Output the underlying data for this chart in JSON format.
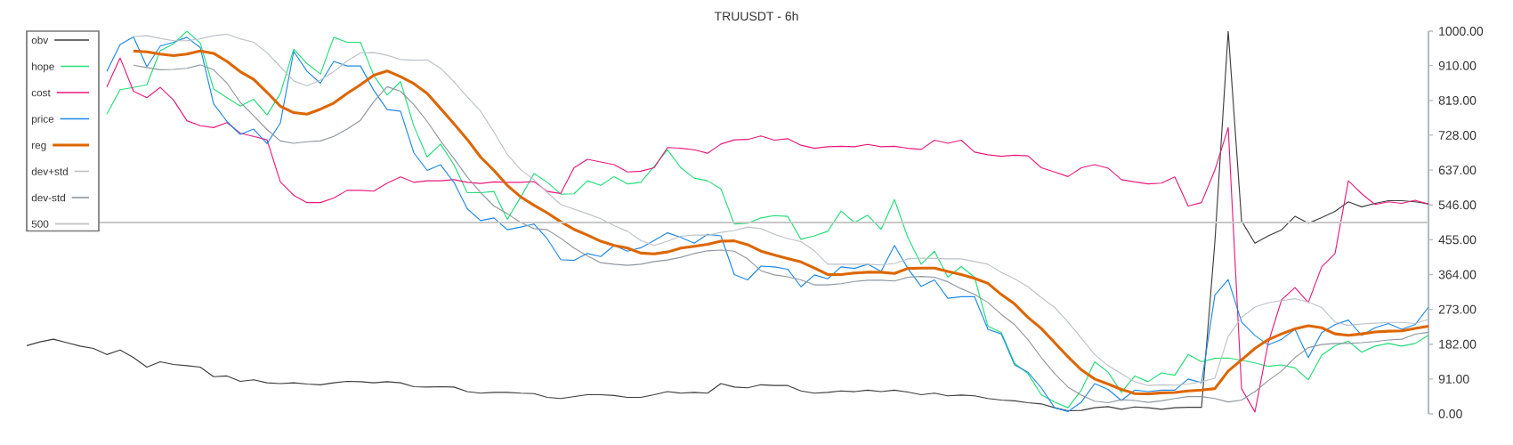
{
  "chart_data": {
    "type": "line",
    "title": "TRUUSDT - 6h",
    "categories": [
      null,
      null,
      null,
      null,
      null,
      null,
      null,
      null,
      null,
      null,
      null,
      null,
      null,
      null,
      null,
      null,
      null,
      null,
      null,
      null,
      null,
      null,
      null,
      null,
      null,
      null,
      null,
      null,
      null,
      null,
      null,
      null,
      null,
      null,
      null,
      null,
      null,
      null,
      null,
      null,
      null,
      null,
      null,
      null,
      null,
      null,
      null,
      null,
      null,
      null,
      null,
      null,
      null,
      null,
      null,
      null,
      null,
      null,
      null,
      null,
      null,
      null,
      null,
      null,
      null,
      null,
      null,
      null,
      null,
      null,
      null,
      null,
      null,
      null,
      null,
      null,
      null,
      null,
      null,
      null,
      null,
      null,
      null,
      null,
      null,
      null,
      null,
      null,
      null,
      null,
      null,
      null,
      null,
      null,
      null,
      null,
      null,
      null,
      null,
      null,
      null,
      null,
      null,
      null,
      null,
      null
    ],
    "series": [
      {
        "name": "obv",
        "color": "#3c3c3c",
        "values": [
          178,
          188,
          195,
          186,
          177,
          171,
          155,
          167,
          147,
          122,
          136,
          129,
          126,
          122,
          97,
          99,
          85,
          89,
          81,
          79,
          81,
          78,
          76,
          81,
          85,
          84,
          81,
          84,
          81,
          71,
          70,
          71,
          70,
          58,
          54,
          56,
          56,
          54,
          53,
          43,
          40,
          45,
          50,
          50,
          48,
          43,
          43,
          50,
          58,
          54,
          56,
          54,
          79,
          70,
          68,
          76,
          74,
          74,
          60,
          54,
          56,
          60,
          58,
          62,
          58,
          62,
          57,
          50,
          54,
          47,
          49,
          47,
          40,
          36,
          34,
          29,
          26,
          16,
          8,
          9,
          16,
          19,
          12,
          18,
          16,
          12,
          16,
          17,
          17,
          449,
          1000,
          504,
          446,
          465,
          481,
          516,
          498,
          513,
          529,
          554,
          541,
          550,
          557,
          557,
          554,
          549
        ]
      },
      {
        "name": "hope",
        "color": "#22dd77",
        "values": [
          null,
          null,
          null,
          null,
          null,
          null,
          783,
          847,
          853,
          860,
          949,
          967,
          1000,
          969,
          849,
          826,
          804,
          822,
          781,
          837,
          953,
          915,
          888,
          984,
          971,
          971,
          884,
          833,
          868,
          752,
          671,
          705,
          651,
          578,
          578,
          581,
          508,
          566,
          628,
          605,
          574,
          575,
          609,
          597,
          620,
          601,
          605,
          647,
          690,
          643,
          616,
          609,
          588,
          496,
          498,
          512,
          518,
          516,
          456,
          465,
          477,
          530,
          500,
          519,
          482,
          560,
          461,
          391,
          425,
          357,
          385,
          357,
          229,
          213,
          132,
          105,
          50,
          31,
          16,
          62,
          136,
          109,
          56,
          99,
          84,
          107,
          101,
          155,
          136,
          145,
          146,
          140,
          133,
          124,
          128,
          120,
          89,
          153,
          178,
          190,
          161,
          177,
          184,
          177,
          184,
          205
        ]
      },
      {
        "name": "cost",
        "color": "#e8197c",
        "values": [
          null,
          null,
          null,
          null,
          null,
          null,
          854,
          930,
          843,
          826,
          853,
          820,
          766,
          753,
          748,
          761,
          733,
          725,
          716,
          606,
          571,
          552,
          552,
          564,
          584,
          584,
          582,
          603,
          619,
          605,
          609,
          609,
          612,
          605,
          602,
          606,
          605,
          605,
          607,
          581,
          576,
          643,
          665,
          658,
          651,
          632,
          634,
          643,
          696,
          694,
          690,
          681,
          705,
          716,
          717,
          726,
          715,
          719,
          702,
          694,
          698,
          699,
          698,
          704,
          698,
          699,
          694,
          691,
          715,
          707,
          715,
          684,
          677,
          673,
          676,
          674,
          643,
          632,
          620,
          643,
          651,
          642,
          612,
          606,
          601,
          603,
          619,
          543,
          552,
          637,
          748,
          66,
          5,
          186,
          298,
          330,
          291,
          384,
          419,
          609,
          575,
          547,
          554,
          550,
          558,
          548
        ]
      },
      {
        "name": "price",
        "color": "#1e88e5",
        "values": [
          null,
          null,
          null,
          null,
          null,
          null,
          895,
          965,
          985,
          907,
          961,
          971,
          984,
          957,
          810,
          764,
          730,
          744,
          706,
          760,
          947,
          895,
          864,
          921,
          909,
          909,
          845,
          795,
          791,
          682,
          636,
          651,
          605,
          536,
          505,
          512,
          481,
          488,
          496,
          457,
          403,
          401,
          419,
          411,
          440,
          425,
          434,
          453,
          473,
          461,
          446,
          469,
          465,
          364,
          350,
          386,
          384,
          378,
          332,
          363,
          353,
          384,
          380,
          391,
          372,
          440,
          380,
          333,
          350,
          302,
          306,
          306,
          221,
          209,
          128,
          109,
          68,
          16,
          6,
          31,
          79,
          64,
          35,
          62,
          58,
          62,
          62,
          91,
          81,
          310,
          351,
          240,
          205,
          180,
          195,
          221,
          147,
          212,
          233,
          245,
          205,
          225,
          236,
          221,
          233,
          279
        ]
      },
      {
        "name": "reg",
        "color": "#dd6600",
        "values": [
          null,
          null,
          null,
          null,
          null,
          null,
          null,
          null,
          948,
          946,
          940,
          936,
          940,
          948,
          942,
          921,
          894,
          874,
          840,
          804,
          787,
          783,
          796,
          812,
          837,
          860,
          885,
          896,
          881,
          863,
          837,
          798,
          758,
          717,
          671,
          636,
          597,
          567,
          545,
          525,
          502,
          482,
          467,
          451,
          440,
          433,
          420,
          418,
          423,
          433,
          438,
          443,
          451,
          452,
          442,
          425,
          415,
          406,
          397,
          381,
          364,
          364,
          368,
          370,
          370,
          367,
          380,
          381,
          381,
          372,
          364,
          354,
          341,
          312,
          287,
          252,
          223,
          186,
          149,
          115,
          91,
          78,
          64,
          53,
          52,
          55,
          56,
          60,
          62,
          66,
          112,
          141,
          171,
          194,
          209,
          222,
          230,
          225,
          209,
          205,
          209,
          214,
          216,
          217,
          223,
          229
        ]
      },
      {
        "name": "dev+std",
        "color": "#bcc2c8",
        "values": [
          null,
          null,
          null,
          null,
          null,
          null,
          null,
          null,
          986,
          988,
          981,
          975,
          975,
          980,
          988,
          992,
          980,
          971,
          944,
          907,
          870,
          857,
          872,
          894,
          922,
          943,
          944,
          937,
          926,
          924,
          925,
          903,
          868,
          828,
          791,
          736,
          678,
          638,
          612,
          578,
          547,
          535,
          523,
          510,
          492,
          477,
          453,
          440,
          451,
          464,
          467,
          467,
          474,
          479,
          488,
          484,
          469,
          458,
          450,
          426,
          391,
          391,
          391,
          391,
          389,
          393,
          405,
          407,
          406,
          405,
          405,
          398,
          391,
          370,
          353,
          332,
          304,
          278,
          240,
          198,
          155,
          126,
          105,
          84,
          74,
          76,
          75,
          78,
          84,
          93,
          202,
          252,
          279,
          290,
          296,
          301,
          292,
          278,
          240,
          231,
          235,
          237,
          239,
          239,
          236,
          247
        ]
      },
      {
        "name": "dev-std",
        "color": "#8e979f",
        "values": [
          null,
          null,
          null,
          null,
          null,
          null,
          null,
          null,
          911,
          905,
          899,
          900,
          903,
          912,
          899,
          864,
          814,
          779,
          743,
          713,
          707,
          711,
          713,
          725,
          744,
          767,
          816,
          855,
          843,
          808,
          764,
          713,
          667,
          619,
          578,
          543,
          523,
          500,
          484,
          481,
          459,
          433,
          413,
          395,
          391,
          388,
          391,
          398,
          402,
          409,
          419,
          426,
          428,
          425,
          405,
          374,
          363,
          358,
          350,
          337,
          337,
          340,
          346,
          349,
          349,
          347,
          357,
          359,
          357,
          345,
          327,
          312,
          291,
          260,
          233,
          194,
          147,
          105,
          70,
          49,
          33,
          29,
          37,
          35,
          30,
          34,
          40,
          45,
          45,
          40,
          31,
          36,
          58,
          87,
          112,
          147,
          173,
          181,
          184,
          184,
          186,
          189,
          193,
          195,
          208,
          213
        ]
      }
    ],
    "ref_lines": [
      {
        "axis": "y",
        "value": 500,
        "label": "500",
        "color": "#c8c8c8"
      }
    ],
    "ylim": [
      0,
      1000
    ],
    "yticks": [
      {
        "value": 0,
        "label": "0.00"
      },
      {
        "value": 91,
        "label": "91.00"
      },
      {
        "value": 182,
        "label": "182.00"
      },
      {
        "value": 273,
        "label": "273.00"
      },
      {
        "value": 364,
        "label": "364.00"
      },
      {
        "value": 455,
        "label": "455.00"
      },
      {
        "value": 546,
        "label": "546.00"
      },
      {
        "value": 637,
        "label": "637.00"
      },
      {
        "value": 728,
        "label": "728.00"
      },
      {
        "value": 819,
        "label": "819.00"
      },
      {
        "value": 910,
        "label": "910.00"
      },
      {
        "value": 1000,
        "label": "1000.00"
      }
    ],
    "legend": "top left",
    "marker": "none",
    "line_style": "solid"
  }
}
